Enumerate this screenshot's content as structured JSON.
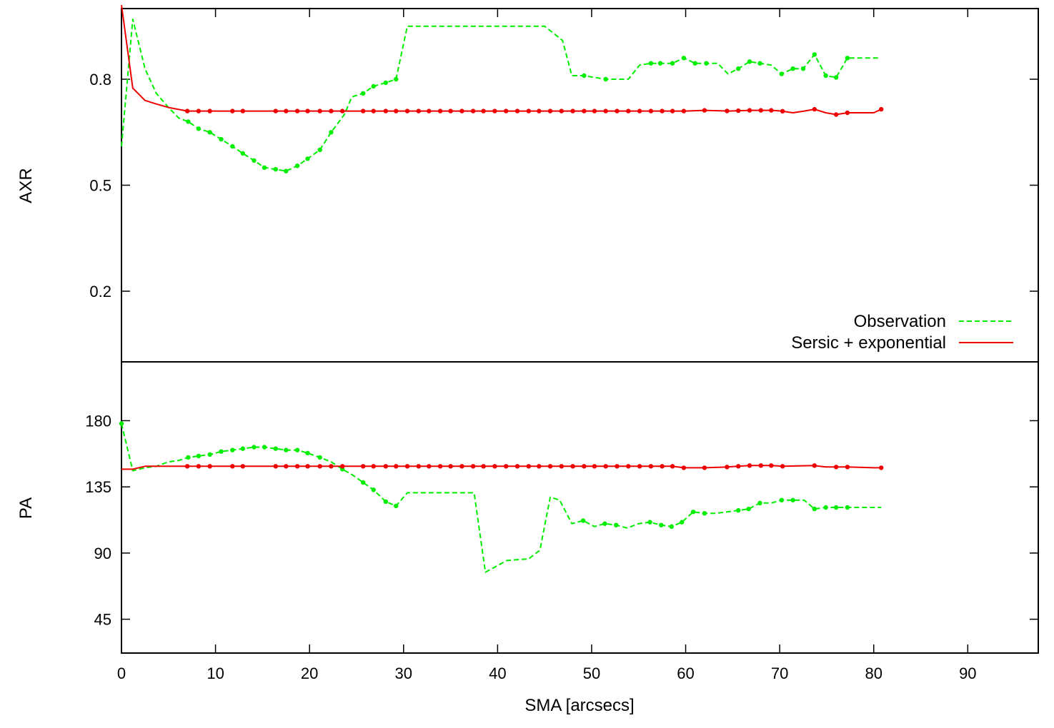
{
  "chart_data": {
    "type": "line",
    "x_axis": {
      "label": "SMA [arcsecs]",
      "range": [
        0,
        97.5
      ],
      "ticks": [
        0,
        10,
        20,
        30,
        40,
        50,
        60,
        70,
        80,
        90
      ],
      "tick_labels": [
        "0",
        "10",
        "20",
        "30",
        "40",
        "50",
        "60",
        "70",
        "80",
        "90"
      ]
    },
    "legend": {
      "placement": "bottom-right of top panel"
    },
    "colors": {
      "observation": "#00ee00",
      "model": "#ee0000",
      "axes": "#000000"
    },
    "panels": [
      {
        "id": "axr",
        "ylabel": "AXR",
        "ylim": [
          0.0,
          1.0
        ],
        "yticks": [
          0.2,
          0.5,
          0.8
        ],
        "ytick_labels": [
          "0.2",
          "0.5",
          "0.8"
        ],
        "series": [
          {
            "name": "Observation",
            "style": "dashed",
            "x": [
              0,
              1.2,
              2.5,
              3.7,
              5.0,
              6.1,
              7.1,
              8.2,
              9.4,
              10.6,
              11.8,
              12.9,
              14.1,
              15.2,
              16.4,
              17.5,
              18.7,
              19.8,
              21.1,
              22.3,
              23.7,
              24.5,
              25.7,
              26.8,
              28.1,
              29.2,
              30.4,
              32.0,
              35.0,
              40.0,
              45.0,
              46.9,
              47.9,
              49.2,
              50.3,
              51.5,
              52.7,
              53.9,
              55.1,
              56.3,
              57.3,
              58.6,
              59.8,
              61.0,
              62.2,
              63.4,
              64.5,
              65.6,
              66.8,
              67.9,
              69.1,
              70.2,
              71.4,
              72.5,
              73.7,
              74.9,
              76.0,
              77.2,
              80.5
            ],
            "y": [
              0.61,
              0.97,
              0.83,
              0.76,
              0.72,
              0.69,
              0.68,
              0.66,
              0.65,
              0.63,
              0.61,
              0.59,
              0.57,
              0.55,
              0.545,
              0.54,
              0.555,
              0.575,
              0.6,
              0.65,
              0.7,
              0.75,
              0.76,
              0.78,
              0.79,
              0.8,
              0.95,
              0.95,
              0.95,
              0.95,
              0.95,
              0.91,
              0.81,
              0.81,
              0.805,
              0.8,
              0.8,
              0.8,
              0.84,
              0.845,
              0.845,
              0.845,
              0.86,
              0.845,
              0.845,
              0.845,
              0.815,
              0.83,
              0.85,
              0.845,
              0.84,
              0.815,
              0.83,
              0.83,
              0.87,
              0.81,
              0.805,
              0.86,
              0.86
            ],
            "markers": [
              7.1,
              8.2,
              9.4,
              10.6,
              11.8,
              12.9,
              14.1,
              15.2,
              16.4,
              17.5,
              18.7,
              19.8,
              21.1,
              22.3,
              25.7,
              26.8,
              28.1,
              29.2,
              49.2,
              51.5,
              56.3,
              57.3,
              58.6,
              59.8,
              61.0,
              62.2,
              65.6,
              66.8,
              67.9,
              70.2,
              71.4,
              72.5,
              73.7,
              74.9,
              76.0,
              77.2
            ]
          },
          {
            "name": "Sersic + exponential",
            "style": "solid",
            "x": [
              0,
              1.2,
              2.5,
              3.7,
              5.0,
              7.0,
              9.4,
              11.8,
              12.9,
              16.4,
              17.5,
              20.0,
              25.0,
              30.0,
              35.0,
              40.0,
              45.0,
              50.0,
              55.0,
              60.0,
              62.0,
              64.5,
              66.8,
              68.0,
              69.2,
              70.2,
              71.4,
              72.6,
              73.7,
              74.9,
              76.0,
              77.2,
              80.0,
              80.8
            ],
            "y": [
              1.01,
              0.775,
              0.74,
              0.73,
              0.72,
              0.71,
              0.71,
              0.71,
              0.71,
              0.71,
              0.71,
              0.71,
              0.71,
              0.71,
              0.71,
              0.71,
              0.71,
              0.71,
              0.71,
              0.71,
              0.712,
              0.71,
              0.712,
              0.712,
              0.712,
              0.71,
              0.705,
              0.71,
              0.715,
              0.705,
              0.7,
              0.705,
              0.705,
              0.715
            ],
            "markers": [
              7.0,
              8.2,
              9.4,
              11.8,
              12.9,
              16.4,
              17.5,
              18.7,
              19.8,
              21.1,
              22.3,
              23.5,
              25.7,
              26.8,
              28.1,
              29.2,
              30.4,
              31.6,
              32.7,
              33.9,
              35.0,
              36.2,
              37.4,
              38.5,
              39.7,
              40.9,
              42.1,
              43.3,
              44.4,
              45.6,
              46.8,
              48.0,
              49.2,
              50.3,
              51.5,
              52.7,
              53.9,
              55.1,
              56.3,
              57.5,
              58.6,
              59.8,
              62.0,
              64.4,
              65.6,
              66.8,
              68.0,
              69.1,
              70.3,
              73.7,
              76.0,
              77.2,
              80.8
            ]
          }
        ]
      },
      {
        "id": "pa",
        "ylabel": "PA",
        "ylim": [
          22,
          220
        ],
        "yticks": [
          45,
          90,
          135,
          180
        ],
        "ytick_labels": [
          "45",
          "90",
          "135",
          "180"
        ],
        "series": [
          {
            "name": "Observation",
            "style": "dashed",
            "x": [
              0,
              1.2,
              2.5,
              3.7,
              5.0,
              6.1,
              7.1,
              8.2,
              9.4,
              10.6,
              11.8,
              12.9,
              14.1,
              15.2,
              16.4,
              17.5,
              18.7,
              19.8,
              21.1,
              22.3,
              23.5,
              24.6,
              25.7,
              26.8,
              28.1,
              29.2,
              30.4,
              32.0,
              35.0,
              37.5,
              38.7,
              41.0,
              43.3,
              44.5,
              45.6,
              46.6,
              47.9,
              49.1,
              50.3,
              51.4,
              52.6,
              53.8,
              55.0,
              56.2,
              57.4,
              58.5,
              59.6,
              60.8,
              62.0,
              63.2,
              64.4,
              65.6,
              66.7,
              67.9,
              69.1,
              70.2,
              71.4,
              72.6,
              73.7,
              74.9,
              76.0,
              77.2,
              80.8
            ],
            "y": [
              178,
              146,
              148,
              149,
              152,
              153,
              155,
              156,
              157,
              159,
              160,
              161,
              162,
              162,
              161,
              160,
              160,
              158,
              155,
              152,
              147,
              143,
              138,
              133,
              125,
              122,
              131,
              131,
              131,
              131,
              77,
              85,
              86,
              92,
              128,
              126,
              110,
              112,
              108,
              110,
              109,
              107,
              110,
              111,
              109,
              108,
              111,
              118,
              117,
              117,
              118,
              119,
              120,
              124,
              124,
              126,
              126,
              126,
              120,
              121,
              121,
              121,
              121
            ],
            "markers": [
              0,
              7.1,
              8.2,
              9.4,
              10.6,
              11.8,
              12.9,
              14.1,
              15.2,
              16.4,
              17.5,
              18.7,
              19.8,
              21.1,
              23.5,
              25.7,
              26.8,
              28.1,
              29.2,
              49.1,
              51.4,
              52.6,
              56.2,
              57.4,
              58.5,
              59.6,
              60.8,
              62.0,
              65.6,
              66.7,
              67.9,
              70.2,
              71.4,
              73.7,
              74.9,
              76.0,
              77.2
            ]
          },
          {
            "name": "Sersic + exponential",
            "style": "solid",
            "x": [
              0,
              1.2,
              2.5,
              3.7,
              5.0,
              7.0,
              10.0,
              20.0,
              30.0,
              40.0,
              50.0,
              58.6,
              59.8,
              62.0,
              64.4,
              66.8,
              68.0,
              69.2,
              70.3,
              73.7,
              74.9,
              76.0,
              77.2,
              80.0,
              80.8
            ],
            "y": [
              147,
              147,
              149,
              149,
              149,
              149,
              149,
              149,
              149,
              149,
              149,
              149,
              148,
              148,
              148.5,
              149.5,
              149.5,
              149.5,
              149,
              149.5,
              148.5,
              148.5,
              148.5,
              148,
              148
            ],
            "markers": [
              7.0,
              8.2,
              9.4,
              11.8,
              12.9,
              16.4,
              17.5,
              18.7,
              19.8,
              21.1,
              22.3,
              23.5,
              25.7,
              26.8,
              28.1,
              29.2,
              30.4,
              31.6,
              32.7,
              33.9,
              35.0,
              36.2,
              37.4,
              38.5,
              39.7,
              40.9,
              42.1,
              43.3,
              44.4,
              45.6,
              46.8,
              48.0,
              49.2,
              50.3,
              51.5,
              52.7,
              53.9,
              55.1,
              56.3,
              57.5,
              58.6,
              59.8,
              62.0,
              64.4,
              65.6,
              66.8,
              68.0,
              69.1,
              70.3,
              73.7,
              76.0,
              77.2,
              80.8
            ]
          }
        ]
      }
    ]
  }
}
